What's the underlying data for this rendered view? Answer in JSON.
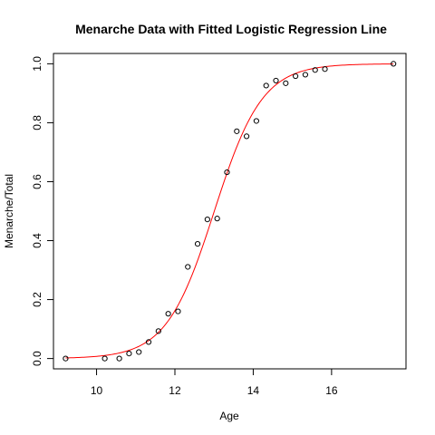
{
  "chart_data": {
    "type": "scatter",
    "title": "Menarche Data with Fitted Logistic Regression Line",
    "xlabel": "Age",
    "ylabel": "Menarche/Total",
    "xlim": [
      8.9,
      17.9
    ],
    "ylim": [
      -0.035,
      1.035
    ],
    "x_ticks": [
      10,
      12,
      14,
      16
    ],
    "y_ticks": [
      0.0,
      0.2,
      0.4,
      0.6,
      0.8,
      1.0
    ],
    "x_tick_labels": [
      "10",
      "12",
      "14",
      "16"
    ],
    "y_tick_labels": [
      "0.0",
      "0.2",
      "0.4",
      "0.6",
      "0.8",
      "1.0"
    ],
    "grid": false,
    "series": [
      {
        "type": "scatter",
        "marker": "open-circle",
        "color": "#000000",
        "points": [
          {
            "x": 9.21,
            "y": 0.0
          },
          {
            "x": 10.21,
            "y": 0.0
          },
          {
            "x": 10.58,
            "y": 0.0
          },
          {
            "x": 10.83,
            "y": 0.017
          },
          {
            "x": 11.08,
            "y": 0.022
          },
          {
            "x": 11.33,
            "y": 0.056
          },
          {
            "x": 11.58,
            "y": 0.093
          },
          {
            "x": 11.83,
            "y": 0.152
          },
          {
            "x": 12.08,
            "y": 0.16
          },
          {
            "x": 12.33,
            "y": 0.311
          },
          {
            "x": 12.58,
            "y": 0.389
          },
          {
            "x": 12.83,
            "y": 0.472
          },
          {
            "x": 13.08,
            "y": 0.475
          },
          {
            "x": 13.33,
            "y": 0.632
          },
          {
            "x": 13.58,
            "y": 0.771
          },
          {
            "x": 13.83,
            "y": 0.754
          },
          {
            "x": 14.08,
            "y": 0.806
          },
          {
            "x": 14.33,
            "y": 0.926
          },
          {
            "x": 14.58,
            "y": 0.943
          },
          {
            "x": 14.83,
            "y": 0.934
          },
          {
            "x": 15.08,
            "y": 0.958
          },
          {
            "x": 15.33,
            "y": 0.963
          },
          {
            "x": 15.58,
            "y": 0.979
          },
          {
            "x": 15.83,
            "y": 0.982
          },
          {
            "x": 17.58,
            "y": 1.0
          }
        ]
      },
      {
        "type": "line",
        "color": "#ff0000",
        "model": "logistic",
        "intercept": -21.226,
        "slope": 1.632,
        "x_range": [
          9.21,
          17.58
        ]
      }
    ]
  }
}
